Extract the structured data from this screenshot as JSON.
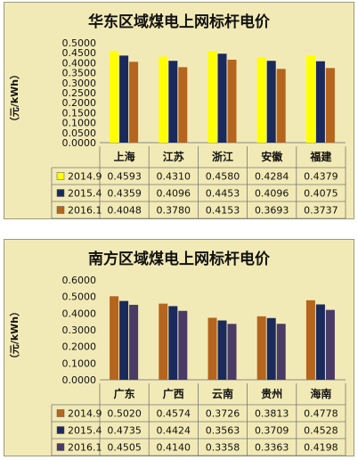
{
  "chart_data": [
    {
      "type": "bar",
      "title": "华东区域煤电上网标杆电价",
      "ylabel": "（元/kWh）",
      "categories": [
        "上海",
        "江苏",
        "浙江",
        "安徽",
        "福建"
      ],
      "ylim": [
        0,
        0.5
      ],
      "yticks": [
        "0.0000",
        "0.0500",
        "0.1000",
        "0.1500",
        "0.2000",
        "0.2500",
        "0.3000",
        "0.3500",
        "0.4000",
        "0.4500",
        "0.5000"
      ],
      "series": [
        {
          "name": "2014.9",
          "color": "#FFFF00",
          "values": [
            0.4593,
            0.431,
            0.458,
            0.4284,
            0.4379
          ],
          "labels": [
            "0.4593",
            "0.4310",
            "0.4580",
            "0.4284",
            "0.4379"
          ]
        },
        {
          "name": "2015.4",
          "color": "#1B2A5C",
          "values": [
            0.4359,
            0.4096,
            0.4453,
            0.4096,
            0.4075
          ],
          "labels": [
            "0.4359",
            "0.4096",
            "0.4453",
            "0.4096",
            "0.4075"
          ]
        },
        {
          "name": "2016.1",
          "color": "#B5651D",
          "values": [
            0.4048,
            0.378,
            0.4153,
            0.3693,
            0.3737
          ],
          "labels": [
            "0.4048",
            "0.3780",
            "0.4153",
            "0.3693",
            "0.3737"
          ]
        }
      ],
      "legend": "data-table",
      "grid": false,
      "background": "#F2EAB6"
    },
    {
      "type": "bar",
      "title": "南方区域煤电上网标杆电价",
      "ylabel": "（元/kWh）",
      "categories": [
        "广东",
        "广西",
        "云南",
        "贵州",
        "海南"
      ],
      "ylim": [
        0,
        0.6
      ],
      "yticks": [
        "0.0000",
        "0.1000",
        "0.2000",
        "0.3000",
        "0.4000",
        "0.5000",
        "0.6000"
      ],
      "series": [
        {
          "name": "2014.9",
          "color": "#B5651D",
          "values": [
            0.502,
            0.4574,
            0.3726,
            0.3813,
            0.4778
          ],
          "labels": [
            "0.5020",
            "0.4574",
            "0.3726",
            "0.3813",
            "0.4778"
          ]
        },
        {
          "name": "2015.4",
          "color": "#1B2A5C",
          "values": [
            0.4735,
            0.4424,
            0.3563,
            0.3709,
            0.4528
          ],
          "labels": [
            "0.4735",
            "0.4424",
            "0.3563",
            "0.3709",
            "0.4528"
          ]
        },
        {
          "name": "2016.1",
          "color": "#4A3A66",
          "values": [
            0.4505,
            0.414,
            0.3358,
            0.3363,
            0.4198
          ],
          "labels": [
            "0.4505",
            "0.4140",
            "0.3358",
            "0.3363",
            "0.4198"
          ]
        }
      ],
      "legend": "data-table",
      "grid": false,
      "background": "#F2EAB6"
    }
  ]
}
